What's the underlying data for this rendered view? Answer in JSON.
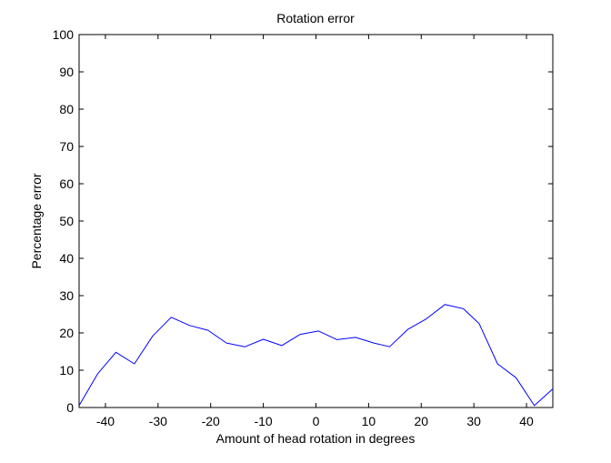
{
  "chart_data": {
    "type": "line",
    "title": "Rotation error",
    "xlabel": "Amount of head rotation in degrees",
    "ylabel": "Percentage error",
    "xlim": [
      -45,
      45
    ],
    "ylim": [
      0,
      100
    ],
    "xticks": [
      -40,
      -30,
      -20,
      -10,
      0,
      10,
      20,
      30,
      40
    ],
    "yticks": [
      0,
      10,
      20,
      30,
      40,
      50,
      60,
      70,
      80,
      90,
      100
    ],
    "grid": false,
    "colors": {
      "line": "#0000ff",
      "axes": "#000000",
      "background": "#ffffff"
    },
    "series": [
      {
        "x": [
          -45,
          -41.5,
          -38,
          -34.5,
          -31,
          -27.5,
          -24,
          -20.5,
          -17,
          -13.5,
          -10,
          -6.5,
          -3,
          0.5,
          4,
          7.5,
          11,
          14,
          17.5,
          21,
          24.5,
          28,
          31,
          34.5,
          38,
          41.5,
          45
        ],
        "values": [
          0.5,
          9,
          14.8,
          11.7,
          19.2,
          24.2,
          22,
          20.7,
          17.3,
          16.3,
          18.3,
          16.6,
          19.6,
          20.5,
          18.2,
          18.8,
          17.3,
          16.3,
          21,
          23.8,
          27.6,
          26.5,
          22.5,
          11.7,
          8,
          0.5,
          5
        ]
      }
    ]
  }
}
